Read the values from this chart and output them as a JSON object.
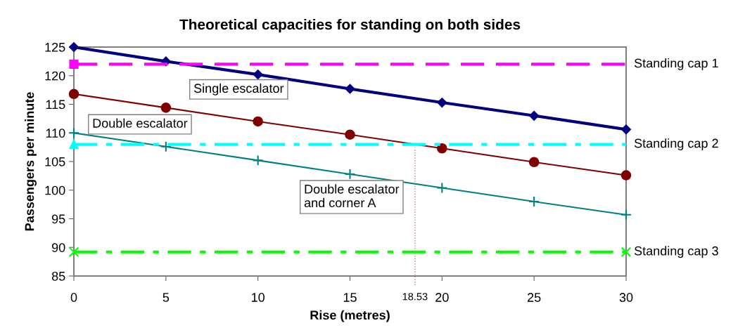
{
  "chart_data": {
    "type": "line",
    "title": "Theoretical capacities for standing on both sides",
    "xlabel": "Rise (metres)",
    "ylabel": "Passengers per minute",
    "x": [
      0,
      5,
      10,
      15,
      20,
      25,
      30
    ],
    "xlim": [
      0,
      30
    ],
    "xticks": [
      0,
      5,
      10,
      15,
      20,
      25,
      30
    ],
    "ylim": [
      85,
      125
    ],
    "yticks": [
      85,
      90,
      95,
      100,
      105,
      110,
      115,
      120,
      125
    ],
    "grid": false,
    "legend": false,
    "series": [
      {
        "name": "Single escalator",
        "color": "#000080",
        "marker": "diamond",
        "line_style": "solid",
        "values": [
          125,
          122.5,
          120.2,
          117.7,
          115.3,
          113.0,
          110.6
        ]
      },
      {
        "name": "Double escalator",
        "color": "#800000",
        "marker": "circle",
        "line_style": "solid",
        "values": [
          116.8,
          114.4,
          112.0,
          109.7,
          107.3,
          104.9,
          102.6
        ]
      },
      {
        "name": "Double escalator\nand corner A",
        "color": "#008080",
        "marker": "plus",
        "line_style": "solid",
        "values": [
          110.0,
          107.6,
          105.2,
          102.8,
          100.4,
          98.0,
          95.7
        ]
      },
      {
        "name": "Standing cap 1",
        "color": "#ff00ff",
        "line_style": "dashed",
        "values": [
          122,
          122,
          122,
          122,
          122,
          122,
          122
        ]
      },
      {
        "name": "Standing cap 2",
        "color": "#00ffff",
        "line_style": "dashdot",
        "values": [
          108,
          108,
          108,
          108,
          108,
          108,
          108
        ]
      },
      {
        "name": "Standing cap 3",
        "color": "#00ff00",
        "line_style": "dashdot",
        "values": [
          89.2,
          89.2,
          89.2,
          89.2,
          89.2,
          89.2,
          89.2
        ]
      }
    ],
    "ref_lines": [
      {
        "axis": "x",
        "value": 18.53,
        "label": "18.53",
        "color": "#c08080",
        "line_style": "dotted"
      }
    ]
  }
}
